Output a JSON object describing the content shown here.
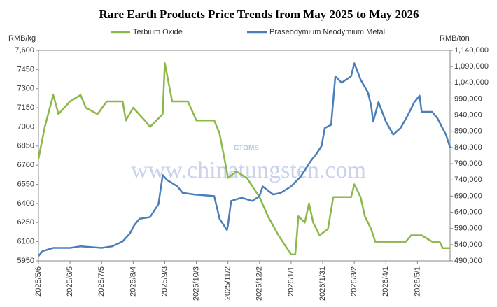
{
  "chart_data": {
    "type": "line",
    "title": "Rare Earth Products Price Trends from May 2025 to May 2026",
    "y_label": "RMB/kg",
    "y2_label": "RMB/ton",
    "watermark": "www.chinatungsten.com",
    "logo_text": "CTOMS",
    "xlim": [
      "2025/5/6",
      "2026/6/1"
    ],
    "xticks": [
      "2025/5/6",
      "2025/6/5",
      "2025/7/5",
      "2025/8/4",
      "2025/9/3",
      "2025/10/3",
      "2025/11/2",
      "2025/12/2",
      "2026/1/1",
      "2026/1/31",
      "2026/3/2",
      "2026/4/1",
      "2026/5/1"
    ],
    "ylim": [
      5950,
      7600
    ],
    "yticks": [
      5950,
      6100,
      6250,
      6400,
      6550,
      6700,
      6850,
      7000,
      7150,
      7300,
      7450,
      {
        "value": 7600,
        "label": "7,600"
      }
    ],
    "y2lim": [
      490000,
      1140000
    ],
    "y2ticks": [
      {
        "value": 490000,
        "label": "490,000"
      },
      {
        "value": 540000,
        "label": "540,000"
      },
      {
        "value": 590000,
        "label": "590,000"
      },
      {
        "value": 640000,
        "label": "640,000"
      },
      {
        "value": 690000,
        "label": "690,000"
      },
      {
        "value": 740000,
        "label": "740,000"
      },
      {
        "value": 790000,
        "label": "790,000"
      },
      {
        "value": 840000,
        "label": "840,000"
      },
      {
        "value": 890000,
        "label": "890,000"
      },
      {
        "value": 940000,
        "label": "940,000"
      },
      {
        "value": 990000,
        "label": "990,000"
      },
      {
        "value": 1040000,
        "label": "1,040,000"
      },
      {
        "value": 1090000,
        "label": "1,090,000"
      },
      {
        "value": 1140000,
        "label": "1,140,000"
      }
    ],
    "series": [
      {
        "name": "Terbium Oxide",
        "color": "#8cb84a",
        "axis": "y",
        "x": [
          "2025/5/6",
          "2025/5/12",
          "2025/5/20",
          "2025/5/25",
          "2025/6/5",
          "2025/6/15",
          "2025/6/20",
          "2025/7/1",
          "2025/7/10",
          "2025/7/25",
          "2025/7/28",
          "2025/8/4",
          "2025/8/15",
          "2025/8/20",
          "2025/9/1",
          "2025/9/3",
          "2025/9/10",
          "2025/9/25",
          "2025/10/3",
          "2025/10/20",
          "2025/10/25",
          "2025/11/1",
          "2025/11/2",
          "2025/11/10",
          "2025/11/20",
          "2025/12/2",
          "2025/12/10",
          "2025/12/20",
          "2025/12/28",
          "2026/1/1",
          "2026/1/5",
          "2026/1/8",
          "2026/1/14",
          "2026/1/18",
          "2026/1/22",
          "2026/1/28",
          "2026/2/5",
          "2026/2/10",
          "2026/2/20",
          "2026/2/27",
          "2026/3/2",
          "2026/3/8",
          "2026/3/12",
          "2026/3/18",
          "2026/3/22",
          "2026/4/1",
          "2026/4/20",
          "2026/4/25",
          "2026/5/5",
          "2026/5/15",
          "2026/5/22",
          "2026/5/25",
          "2026/6/1"
        ],
        "values": [
          6750,
          7000,
          7250,
          7100,
          7200,
          7250,
          7150,
          7100,
          7200,
          7200,
          7050,
          7150,
          7050,
          7000,
          7100,
          7500,
          7200,
          7200,
          7050,
          7050,
          6950,
          6650,
          6600,
          6650,
          6600,
          6450,
          6300,
          6150,
          6050,
          6000,
          6000,
          6300,
          6250,
          6400,
          6250,
          6150,
          6200,
          6450,
          6450,
          6450,
          6550,
          6450,
          6300,
          6200,
          6100,
          6100,
          6100,
          6150,
          6150,
          6100,
          6100,
          6050,
          6050
        ]
      },
      {
        "name": "Praseodymium Neodymium Metal",
        "color": "#4a7ebb",
        "axis": "y2",
        "x": [
          "2025/5/6",
          "2025/5/10",
          "2025/5/20",
          "2025/6/5",
          "2025/6/15",
          "2025/7/5",
          "2025/7/15",
          "2025/7/25",
          "2025/8/1",
          "2025/8/5",
          "2025/8/10",
          "2025/8/20",
          "2025/8/28",
          "2025/9/1",
          "2025/9/5",
          "2025/9/15",
          "2025/9/20",
          "2025/10/1",
          "2025/10/20",
          "2025/10/25",
          "2025/11/1",
          "2025/11/2",
          "2025/11/5",
          "2025/11/15",
          "2025/11/25",
          "2025/12/2",
          "2025/12/5",
          "2025/12/15",
          "2025/12/22",
          "2026/1/1",
          "2026/1/10",
          "2026/1/20",
          "2026/1/25",
          "2026/1/30",
          "2026/2/2",
          "2026/2/8",
          "2026/2/12",
          "2026/2/18",
          "2026/2/27",
          "2026/3/2",
          "2026/3/8",
          "2026/3/15",
          "2026/3/18",
          "2026/3/20",
          "2026/3/25",
          "2026/4/1",
          "2026/4/8",
          "2026/4/15",
          "2026/4/22",
          "2026/4/28",
          "2026/5/3",
          "2026/5/5",
          "2026/5/15",
          "2026/5/20",
          "2026/5/28",
          "2026/6/1"
        ],
        "values": [
          505000,
          520000,
          530000,
          530000,
          535000,
          530000,
          535000,
          550000,
          575000,
          600000,
          620000,
          625000,
          665000,
          755000,
          740000,
          720000,
          700000,
          695000,
          690000,
          620000,
          585000,
          600000,
          675000,
          685000,
          675000,
          690000,
          720000,
          695000,
          700000,
          720000,
          750000,
          800000,
          820000,
          845000,
          900000,
          910000,
          1060000,
          1040000,
          1060000,
          1100000,
          1050000,
          1010000,
          970000,
          920000,
          980000,
          920000,
          880000,
          900000,
          940000,
          980000,
          1000000,
          950000,
          950000,
          930000,
          880000,
          840000
        ]
      }
    ]
  }
}
